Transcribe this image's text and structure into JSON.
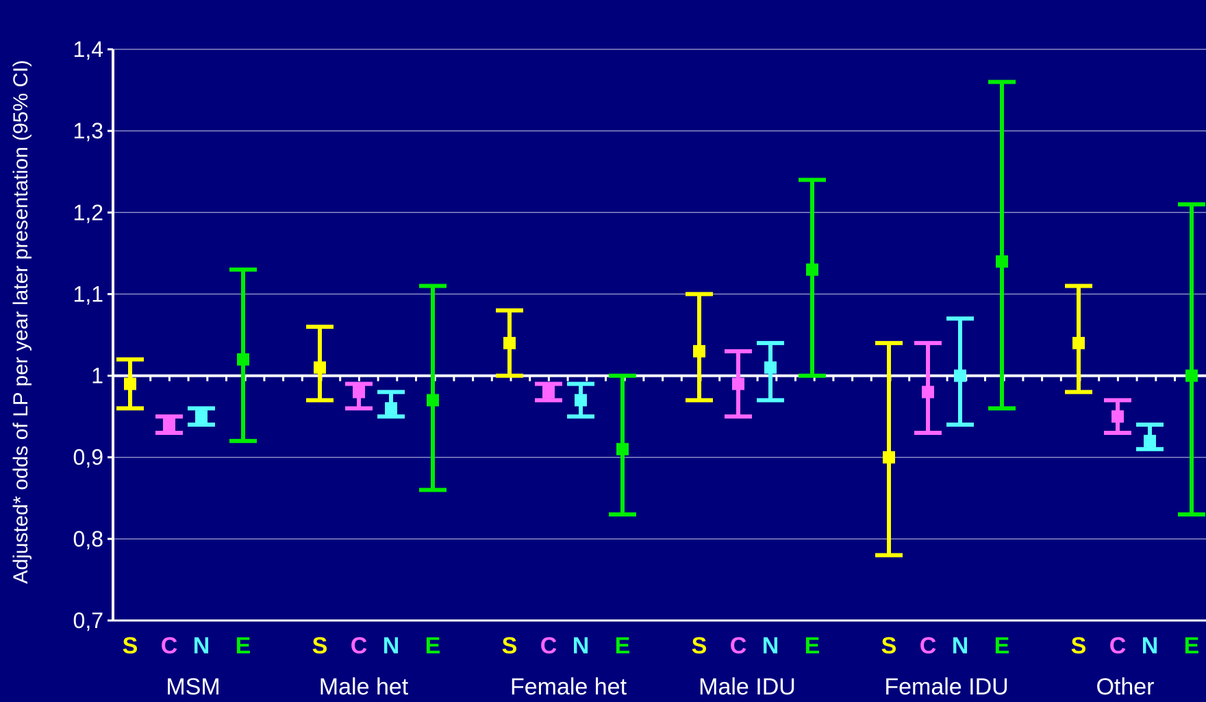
{
  "chart_data": {
    "type": "errorbar",
    "title": "",
    "xlabel": "",
    "ylabel": "Adjusted* odds of LP per year later presentation (95% CI)",
    "ylim": [
      0.7,
      1.4
    ],
    "yticks": [
      0.7,
      0.8,
      0.9,
      1.0,
      1.1,
      1.2,
      1.3,
      1.4
    ],
    "ytick_labels": [
      "0,7",
      "0,8",
      "0,9",
      "1",
      "1,1",
      "1,2",
      "1,3",
      "1,4"
    ],
    "reference_line": 1.0,
    "grid": true,
    "subcategory_labels": [
      "S",
      "C",
      "N",
      "E"
    ],
    "subcategory_colors": [
      "#ffff00",
      "#ff66ff",
      "#55ffff",
      "#00ee00"
    ],
    "groups": [
      {
        "name": "MSM",
        "points": [
          {
            "sub": "S",
            "est": 0.99,
            "lo": 0.96,
            "hi": 1.02
          },
          {
            "sub": "C",
            "est": 0.94,
            "lo": 0.93,
            "hi": 0.95
          },
          {
            "sub": "N",
            "est": 0.95,
            "lo": 0.94,
            "hi": 0.96
          },
          {
            "sub": "E",
            "est": 1.02,
            "lo": 0.92,
            "hi": 1.13
          }
        ]
      },
      {
        "name": "Male het",
        "points": [
          {
            "sub": "S",
            "est": 1.01,
            "lo": 0.97,
            "hi": 1.06
          },
          {
            "sub": "C",
            "est": 0.98,
            "lo": 0.96,
            "hi": 0.99
          },
          {
            "sub": "N",
            "est": 0.96,
            "lo": 0.95,
            "hi": 0.98
          },
          {
            "sub": "E",
            "est": 0.97,
            "lo": 0.86,
            "hi": 1.11
          }
        ]
      },
      {
        "name": "Female het",
        "points": [
          {
            "sub": "S",
            "est": 1.04,
            "lo": 1.0,
            "hi": 1.08
          },
          {
            "sub": "C",
            "est": 0.98,
            "lo": 0.97,
            "hi": 0.99
          },
          {
            "sub": "N",
            "est": 0.97,
            "lo": 0.95,
            "hi": 0.99
          },
          {
            "sub": "E",
            "est": 0.91,
            "lo": 0.83,
            "hi": 1.0
          }
        ]
      },
      {
        "name": "Male IDU",
        "points": [
          {
            "sub": "S",
            "est": 1.03,
            "lo": 0.97,
            "hi": 1.1
          },
          {
            "sub": "C",
            "est": 0.99,
            "lo": 0.95,
            "hi": 1.03
          },
          {
            "sub": "N",
            "est": 1.01,
            "lo": 0.97,
            "hi": 1.04
          },
          {
            "sub": "E",
            "est": 1.13,
            "lo": 1.0,
            "hi": 1.24
          }
        ]
      },
      {
        "name": "Female IDU",
        "points": [
          {
            "sub": "S",
            "est": 0.9,
            "lo": 0.78,
            "hi": 1.04
          },
          {
            "sub": "C",
            "est": 0.98,
            "lo": 0.93,
            "hi": 1.04
          },
          {
            "sub": "N",
            "est": 1.0,
            "lo": 0.94,
            "hi": 1.07
          },
          {
            "sub": "E",
            "est": 1.14,
            "lo": 0.96,
            "hi": 1.36
          }
        ]
      },
      {
        "name": "Other",
        "points": [
          {
            "sub": "S",
            "est": 1.04,
            "lo": 0.98,
            "hi": 1.11
          },
          {
            "sub": "C",
            "est": 0.95,
            "lo": 0.93,
            "hi": 0.97
          },
          {
            "sub": "N",
            "est": 0.92,
            "lo": 0.91,
            "hi": 0.94
          },
          {
            "sub": "E",
            "est": 1.0,
            "lo": 0.83,
            "hi": 1.21
          }
        ]
      }
    ]
  }
}
